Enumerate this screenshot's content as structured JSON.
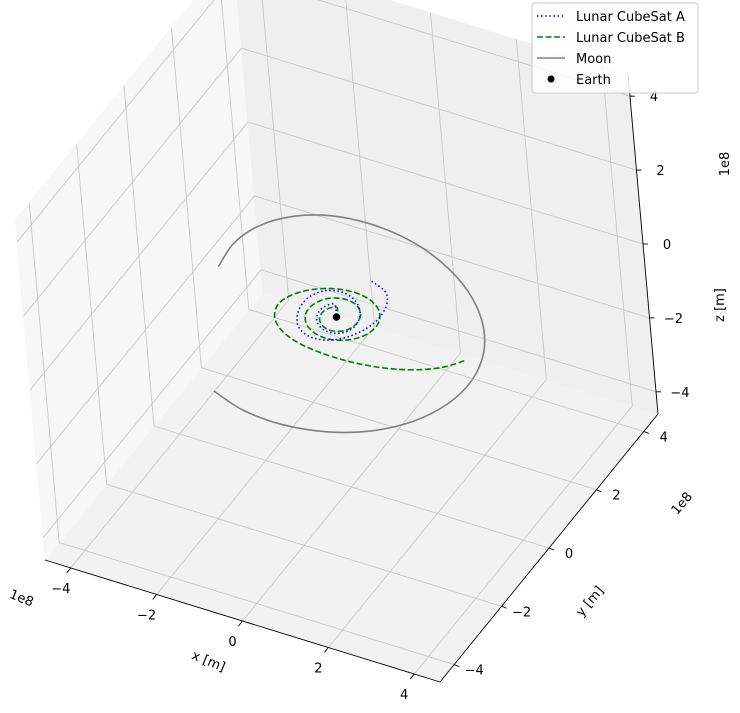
{
  "chart_data": {
    "type": "line",
    "projection": "3d",
    "xlabel": "x [m]",
    "ylabel": "y [m]",
    "zlabel": "z [m]",
    "x_offset_label": "1e8",
    "y_offset_label": "1e8",
    "z_offset_label": "1e8",
    "x_ticks": [
      "−4",
      "−2",
      "0",
      "2",
      "4"
    ],
    "y_ticks": [
      "−4",
      "−2",
      "0",
      "2",
      "4"
    ],
    "z_ticks": [
      "−4",
      "−2",
      "0",
      "2",
      "4"
    ],
    "xlim": [
      -4.6,
      4.6
    ],
    "ylim": [
      -4.6,
      4.6
    ],
    "zlim": [
      -4.6,
      4.6
    ],
    "grid": true,
    "legend_position": "top-right",
    "series": [
      {
        "name": "Lunar CubeSat A",
        "style": "dotted",
        "color": "#0000ff",
        "x": [
          0.11,
          0.56,
          0.78,
          0.78,
          0.55,
          0.18,
          -0.23,
          -0.59,
          -0.8,
          -0.82,
          -0.63,
          -0.29,
          0.08,
          0.36,
          0.48,
          0.42,
          0.22,
          -0.04,
          -0.28,
          -0.4,
          -0.38,
          -0.23,
          0.0
        ],
        "y": [
          1.28,
          1.08,
          0.64,
          0.1,
          -0.4,
          -0.71,
          -0.76,
          -0.56,
          -0.16,
          0.28,
          0.61,
          0.73,
          0.62,
          0.34,
          0.0,
          -0.3,
          -0.46,
          -0.46,
          -0.31,
          -0.06,
          0.18,
          0.33,
          0.0
        ],
        "z": [
          0,
          0,
          0,
          0,
          0,
          0,
          0,
          0,
          0,
          0,
          0,
          0,
          0,
          0,
          0,
          0,
          0,
          0,
          0,
          0,
          0,
          0,
          0
        ]
      },
      {
        "name": "Lunar CubeSat B",
        "style": "dashed",
        "color": "#008000",
        "x": [
          3.04,
          2.78,
          2.42,
          1.95,
          1.41,
          0.82,
          0.2,
          -0.4,
          -0.9,
          -1.2,
          -1.27,
          -1.07,
          -0.68,
          -0.19,
          0.29,
          0.67,
          0.87,
          0.84,
          0.62,
          0.26,
          -0.12,
          -0.45,
          -0.63,
          -0.61,
          -0.42,
          -0.11,
          0.2,
          0.42,
          0.47,
          0.35,
          0.1,
          -0.16,
          -0.32,
          -0.3,
          -0.13,
          0.0
        ],
        "y": [
          -0.12,
          -0.44,
          -0.7,
          -0.91,
          -1.05,
          -1.12,
          -1.11,
          -1.01,
          -0.78,
          -0.44,
          -0.04,
          0.36,
          0.67,
          0.82,
          0.78,
          0.56,
          0.2,
          -0.18,
          -0.49,
          -0.66,
          -0.64,
          -0.45,
          -0.14,
          0.19,
          0.45,
          0.56,
          0.49,
          0.25,
          -0.05,
          -0.31,
          -0.42,
          -0.34,
          -0.12,
          0.13,
          0.26,
          0.0
        ],
        "z": [
          0,
          0,
          0,
          0,
          0,
          0,
          0,
          0,
          0,
          0,
          0,
          0,
          0,
          0,
          0,
          0,
          0,
          0,
          0,
          0,
          0,
          0,
          0,
          0,
          0,
          0,
          0,
          0,
          0,
          0,
          0,
          0,
          0,
          0,
          0,
          0
        ]
      },
      {
        "name": "Moon",
        "style": "solid",
        "color": "#808080",
        "x": [
          -1.16,
          -0.31,
          0.63,
          1.56,
          2.37,
          3.0,
          3.38,
          3.48,
          3.27,
          2.77,
          2.03,
          1.13,
          0.16,
          -0.8,
          -1.67,
          -2.36,
          -2.83,
          -3.03,
          -2.96
        ],
        "y": [
          -3.07,
          -3.35,
          -3.41,
          -3.23,
          -2.83,
          -2.22,
          -1.45,
          -0.6,
          0.29,
          1.12,
          1.84,
          2.39,
          2.73,
          2.84,
          2.72,
          2.37,
          1.83,
          1.15,
          0.38
        ],
        "z": [
          0,
          0,
          0,
          0,
          0,
          0,
          0,
          0,
          0,
          0,
          0,
          0,
          0,
          0,
          0,
          0,
          0,
          0,
          0
        ]
      },
      {
        "name": "Earth",
        "style": "marker",
        "color": "#000000",
        "x": [
          0
        ],
        "y": [
          0
        ],
        "z": [
          0
        ]
      }
    ]
  }
}
